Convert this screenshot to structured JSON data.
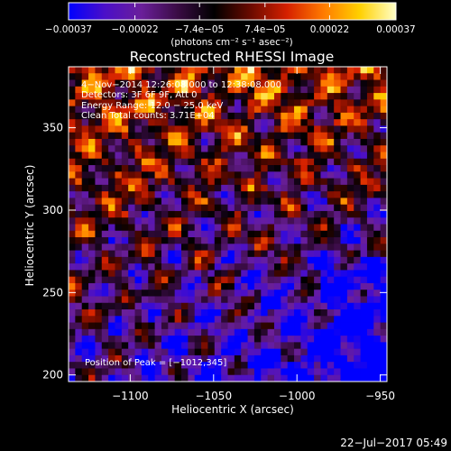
{
  "chart_data": {
    "type": "heatmap",
    "title": "Reconstructed RHESSI Image",
    "xlabel": "Heliocentric X (arcsec)",
    "ylabel": "Heliocentric Y (arcsec)",
    "xlim": [
      -1137,
      -946
    ],
    "ylim": [
      196,
      387
    ],
    "x_ticks": [
      {
        "value": -1100,
        "label": "−1100"
      },
      {
        "value": -1050,
        "label": "−1050"
      },
      {
        "value": -1000,
        "label": "−1000"
      },
      {
        "value": -950,
        "label": "−950"
      }
    ],
    "y_ticks": [
      {
        "value": 200,
        "label": "200"
      },
      {
        "value": 250,
        "label": "250"
      },
      {
        "value": 300,
        "label": "300"
      },
      {
        "value": 350,
        "label": "350"
      }
    ],
    "colorbar": {
      "range": [
        -0.00037,
        0.00037
      ],
      "ticks": [
        {
          "value": -0.00037,
          "label": "−0.00037"
        },
        {
          "value": -0.00022,
          "label": "−0.00022"
        },
        {
          "value": -7.4e-05,
          "label": "−7.4e−05"
        },
        {
          "value": 7.4e-05,
          "label": "7.4e−05"
        },
        {
          "value": 0.00022,
          "label": "0.00022"
        },
        {
          "value": 0.00037,
          "label": "0.00037"
        }
      ],
      "unit_label": "(photons cm⁻² s⁻¹ asec⁻²)",
      "colormap": [
        "#0000ff",
        "#4b0fc8",
        "#6a1f9a",
        "#3a0c44",
        "#000000",
        "#6a0a00",
        "#d52000",
        "#ff7a00",
        "#ffd000",
        "#ffffc8"
      ]
    },
    "annotations": [
      "4−Nov−2014 12:26:08.000 to 12:38:08.000",
      "Detectors: 3F 6F 9F, Att 0",
      "Energy Range: 12.0 − 25.0 keV",
      "Clean    Total counts: 3.71E+04"
    ],
    "peak_label": "Position of Peak = [−1012,345]",
    "grid": false
  },
  "footer": {
    "date": "22−Jul−2017 05:49"
  }
}
